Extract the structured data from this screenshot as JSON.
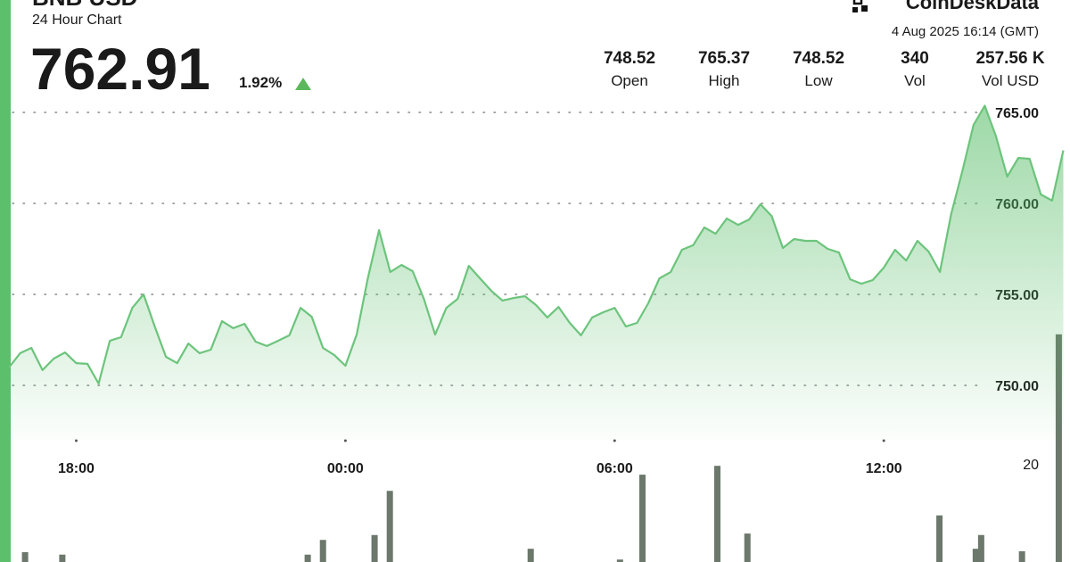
{
  "chart_data": {
    "type": "line",
    "title": "BNB USD",
    "subtitle": "24 Hour Chart",
    "header": {
      "price": "762.91",
      "change": "1.92%",
      "brand": "CoinDeskData",
      "timestamp": "4 Aug 2025 16:14 (GMT)",
      "stats": [
        {
          "value": "748.52",
          "label": "Open"
        },
        {
          "value": "765.37",
          "label": "High"
        },
        {
          "value": "748.52",
          "label": "Low"
        },
        {
          "value": "340",
          "label": "Vol"
        },
        {
          "value": "257.56 K",
          "label": "Vol USD"
        }
      ]
    },
    "color": "#6cc47c",
    "x": [
      16.5,
      16.75,
      17,
      17.25,
      17.5,
      17.75,
      18,
      18.25,
      18.5,
      18.75,
      19,
      19.25,
      19.5,
      19.75,
      20,
      20.25,
      20.5,
      20.75,
      21,
      21.25,
      21.5,
      21.75,
      22,
      22.25,
      22.5,
      22.75,
      23,
      23.25,
      23.5,
      23.75,
      24,
      24.25,
      24.5,
      24.75,
      25,
      25.25,
      25.5,
      25.75,
      26,
      26.25,
      26.5,
      26.75,
      27,
      27.25,
      27.5,
      27.75,
      28,
      28.25,
      28.5,
      28.75,
      29,
      29.25,
      29.5,
      29.75,
      30,
      30.25,
      30.5,
      30.75,
      31,
      31.25,
      31.5,
      31.75,
      32,
      32.25,
      32.5,
      32.75,
      33,
      33.25,
      33.5,
      33.75,
      34,
      34.25,
      34.5,
      34.75,
      35,
      35.25,
      35.5,
      35.75,
      36,
      36.25,
      36.5,
      36.75,
      37,
      37.25,
      37.5,
      37.75,
      38,
      38.25,
      38.5,
      38.75,
      39,
      39.25,
      39.5,
      39.75,
      40
    ],
    "values": [
      750.98,
      751.77,
      752.06,
      750.84,
      751.47,
      751.81,
      751.22,
      751.18,
      750.1,
      752.45,
      752.65,
      754.26,
      755.0,
      753.24,
      751.57,
      751.22,
      752.3,
      751.77,
      751.96,
      753.53,
      753.14,
      753.38,
      752.4,
      752.16,
      752.45,
      752.75,
      754.26,
      753.77,
      752.06,
      751.67,
      751.08,
      752.79,
      755.88,
      758.53,
      756.23,
      756.62,
      756.27,
      754.75,
      752.79,
      754.26,
      754.75,
      756.57,
      755.88,
      755.2,
      754.66,
      754.8,
      754.9,
      754.41,
      753.73,
      754.31,
      753.43,
      752.75,
      753.73,
      754.02,
      754.26,
      753.24,
      753.43,
      754.51,
      755.88,
      756.23,
      757.45,
      757.7,
      758.68,
      758.33,
      759.17,
      758.82,
      759.12,
      759.95,
      759.31,
      757.55,
      758.04,
      757.94,
      757.94,
      757.5,
      757.3,
      755.83,
      755.59,
      755.78,
      756.47,
      757.45,
      756.86,
      757.94,
      757.35,
      756.23,
      759.41,
      761.76,
      764.31,
      765.37,
      763.68,
      761.47,
      762.5,
      762.45,
      760.49,
      760.15,
      762.91
    ],
    "xlim": [
      16.5,
      40.15
    ],
    "xticks": [
      {
        "value": 18,
        "label": "18:00"
      },
      {
        "value": 24,
        "label": "00:00"
      },
      {
        "value": 30,
        "label": "06:00"
      },
      {
        "value": 36,
        "label": "12:00"
      }
    ],
    "ylim": [
      747,
      771
    ],
    "yticks": [
      {
        "value": 750,
        "label": "750.00"
      },
      {
        "value": 755,
        "label": "755.00"
      },
      {
        "value": 760,
        "label": "760.00"
      },
      {
        "value": 765,
        "label": "765.00"
      }
    ],
    "grid": true,
    "volume": {
      "color": "#6b786b",
      "x": [
        16.86,
        17.69,
        23.16,
        23.5,
        24.65,
        24.99,
        28.13,
        30.12,
        30.62,
        32.29,
        32.96,
        37.24,
        38.05,
        38.17,
        39.08,
        39.9
      ],
      "values": [
        2,
        1.5,
        1.5,
        4.5,
        5.5,
        14.5,
        2.7,
        0.5,
        17.8,
        19.6,
        5.8,
        9.5,
        2.7,
        5.5,
        2.2,
        46.4
      ],
      "ylim": [
        0,
        50
      ],
      "yticks": [
        20
      ]
    }
  }
}
